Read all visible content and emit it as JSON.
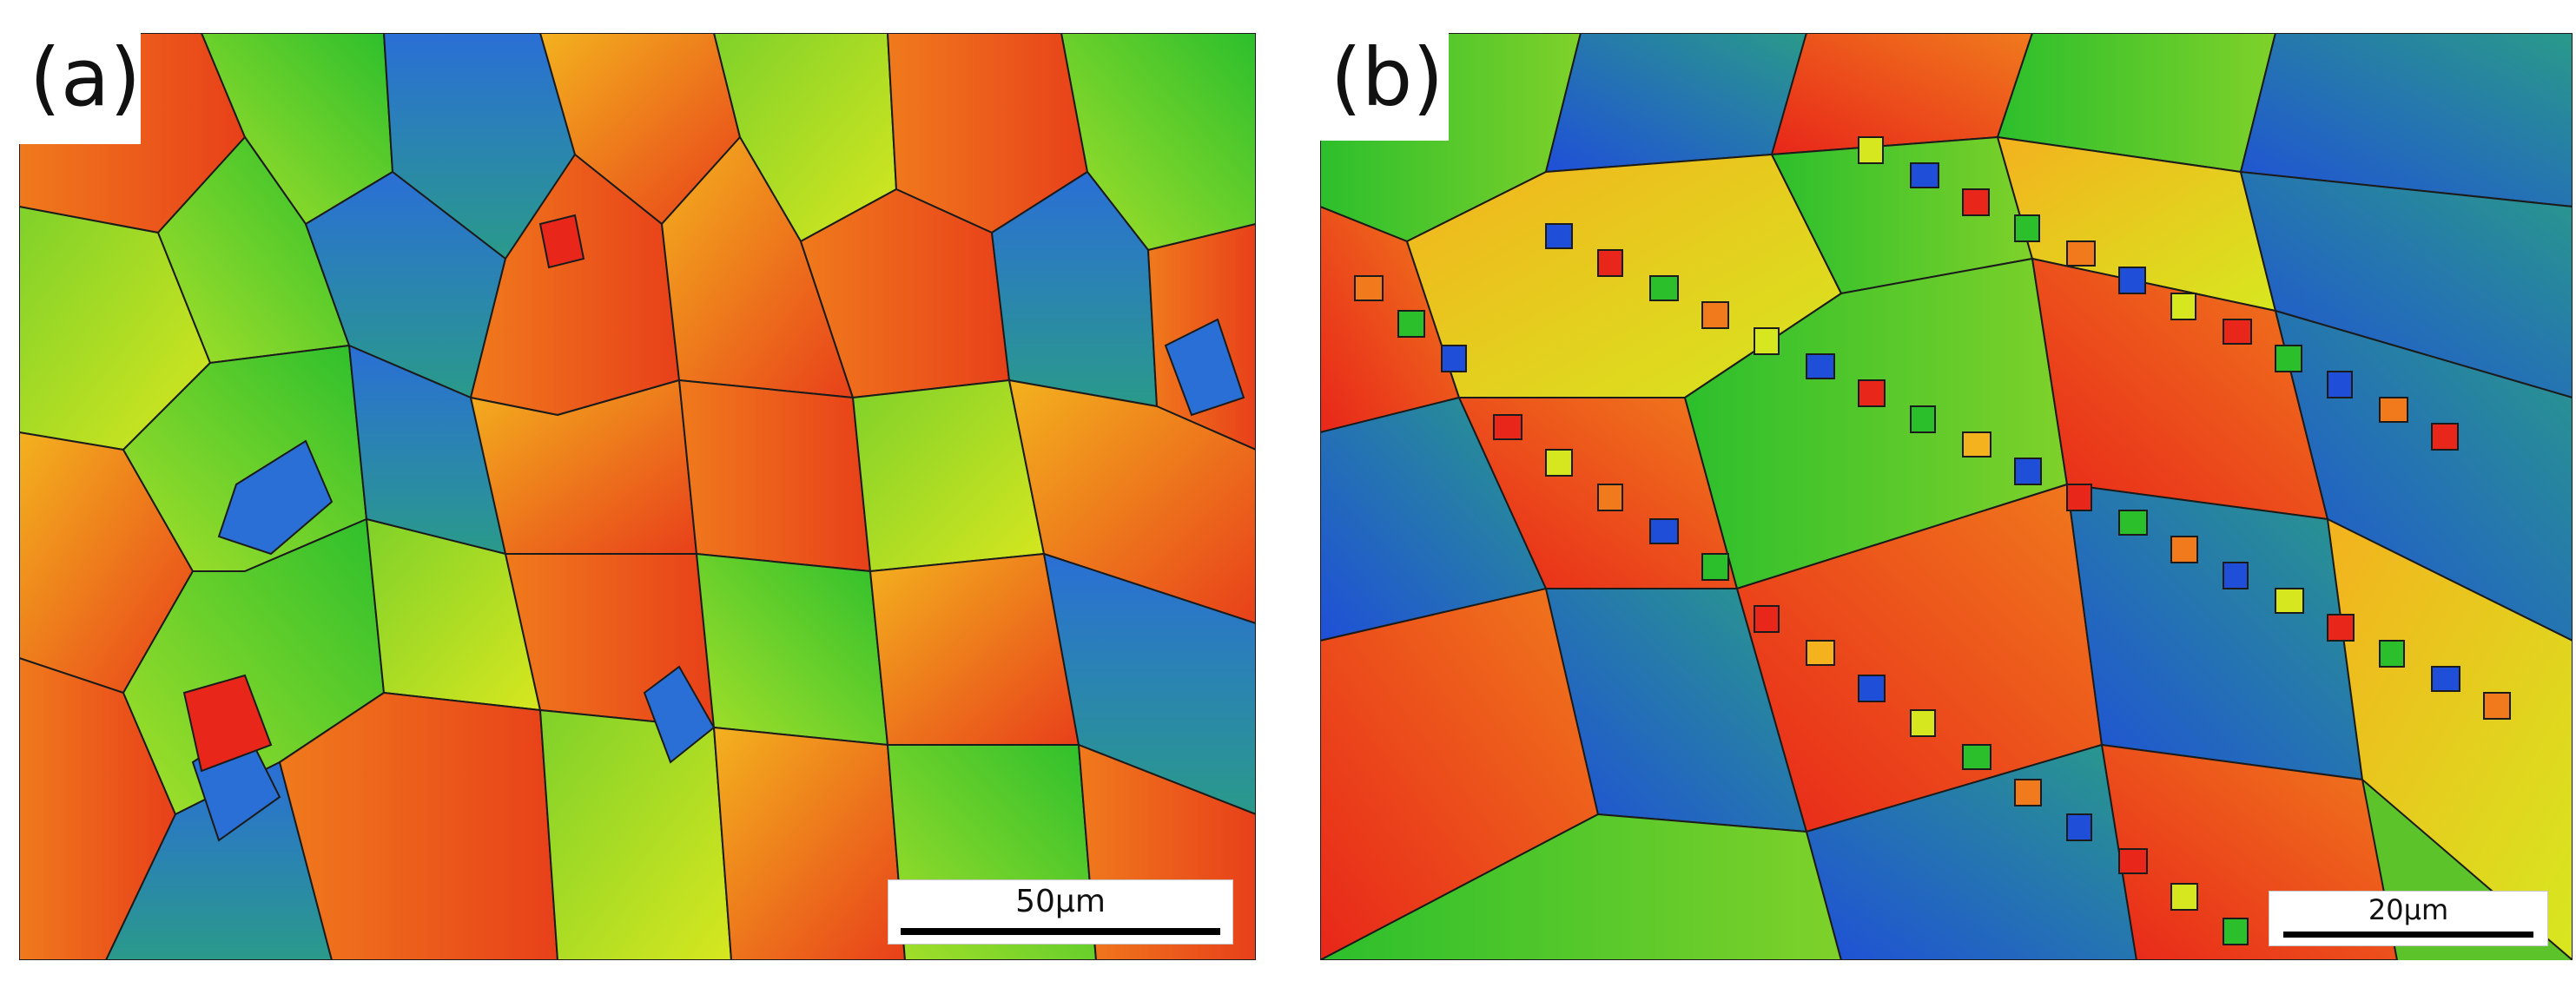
{
  "figure": {
    "panels": [
      {
        "label": "(a)",
        "scale_bar_text": "50μm",
        "grain_scale": "coarse",
        "dominant_colors": [
          "#e8401a",
          "#f07a1c",
          "#f3b21e",
          "#d7e71f",
          "#7fd12a",
          "#2cbf2c",
          "#2a6fd6",
          "#2a9a8a"
        ]
      },
      {
        "label": "(b)",
        "scale_bar_text": "20μm",
        "grain_scale": "fine, mixed",
        "dominant_colors": [
          "#e8401a",
          "#f07a1c",
          "#f3b21e",
          "#d7e71f",
          "#7fd12a",
          "#2cbf2c",
          "#1f4fd8",
          "#2a9a8a"
        ]
      }
    ]
  }
}
